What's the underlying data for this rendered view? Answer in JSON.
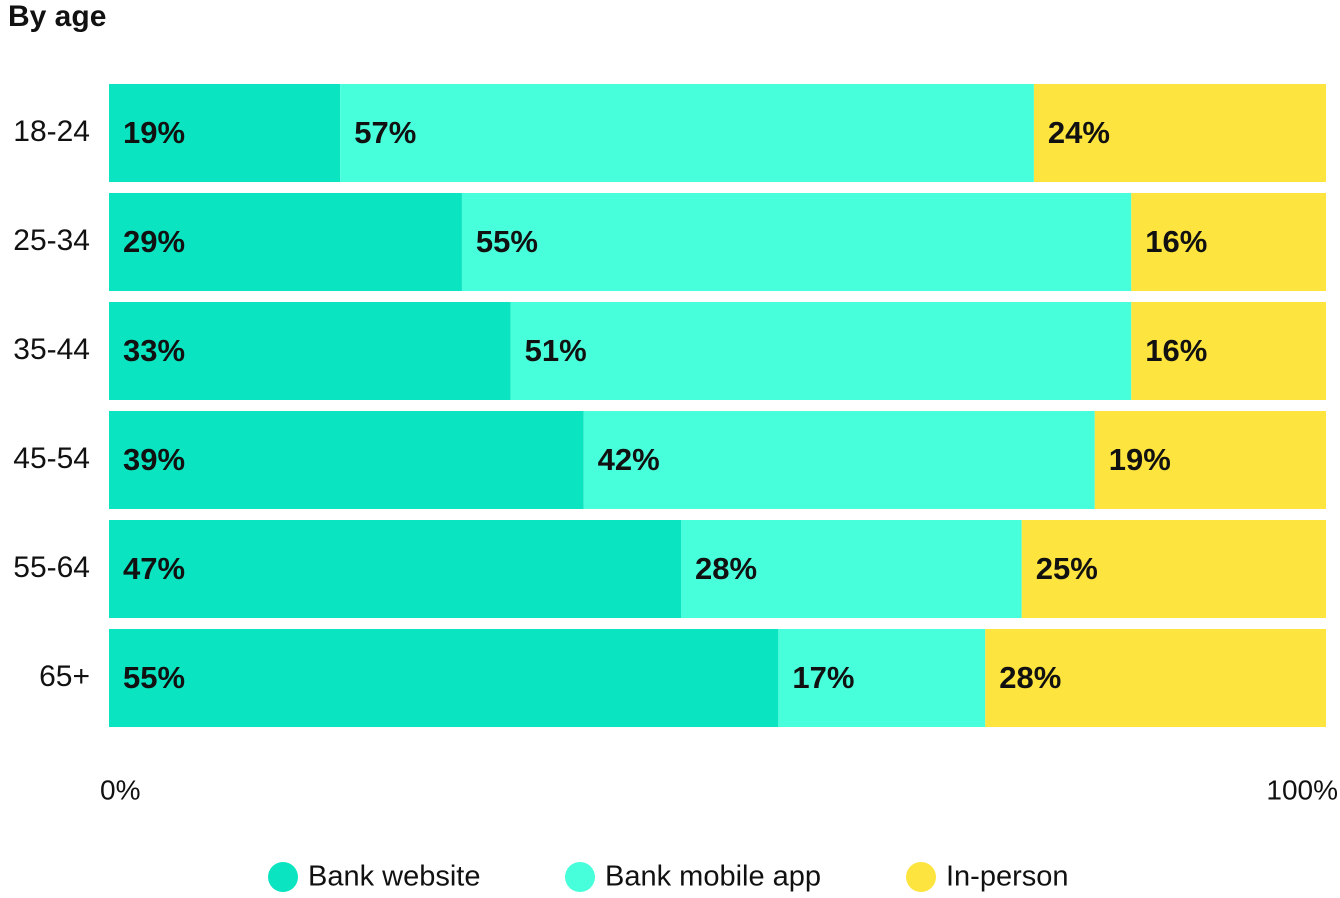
{
  "chart_data": {
    "type": "stacked-bar-horizontal",
    "title": "By age",
    "categories": [
      "18-24",
      "25-34",
      "35-44",
      "45-54",
      "55-64",
      "65+"
    ],
    "series": [
      {
        "name": "Bank website",
        "color": "#0ae4c0",
        "values": [
          19,
          29,
          33,
          39,
          47,
          55
        ],
        "value_labels": [
          "19%",
          "29%",
          "33%",
          "39%",
          "47%",
          "55%"
        ]
      },
      {
        "name": "Bank mobile app",
        "color": "#48ffdc",
        "values": [
          57,
          55,
          51,
          42,
          28,
          17
        ],
        "value_labels": [
          "57%",
          "55%",
          "51%",
          "42%",
          "28%",
          "17%"
        ]
      },
      {
        "name": "In-person",
        "color": "#fde43e",
        "values": [
          24,
          16,
          16,
          19,
          25,
          28
        ],
        "value_labels": [
          "24%",
          "16%",
          "16%",
          "19%",
          "25%",
          "28%"
        ]
      }
    ],
    "xlim": [
      0,
      100
    ],
    "xticks": [
      {
        "value": 0,
        "label": "0%"
      },
      {
        "value": 100,
        "label": "100%"
      }
    ]
  }
}
